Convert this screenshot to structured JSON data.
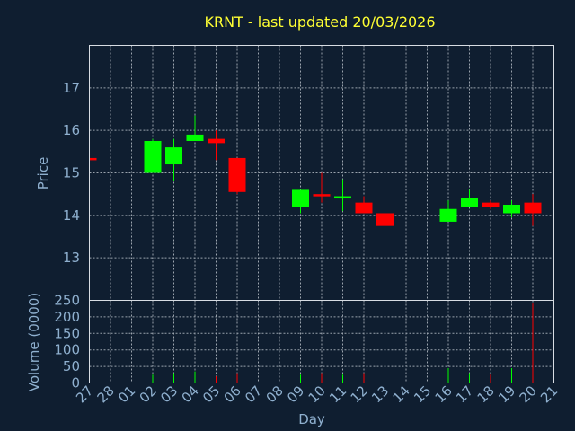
{
  "chart_data": {
    "type": "candlestick",
    "title": "KRNT - last updated 20/03/2026",
    "xlabel": "Day",
    "x_ticks": [
      "27",
      "28",
      "01",
      "02",
      "03",
      "04",
      "05",
      "06",
      "07",
      "08",
      "09",
      "10",
      "11",
      "12",
      "13",
      "14",
      "15",
      "16",
      "17",
      "18",
      "19",
      "20",
      "21"
    ],
    "price_panel": {
      "ylabel": "Price",
      "ylim": [
        12.0,
        18.0
      ],
      "yticks": [
        13,
        14,
        15,
        16,
        17
      ],
      "grid": true
    },
    "volume_panel": {
      "ylabel": "Volume (0000)",
      "ylim": [
        0,
        250
      ],
      "yticks": [
        0,
        50,
        100,
        150,
        200,
        250
      ],
      "grid": true
    },
    "up_color": "#00ff00",
    "down_color": "#ff0000",
    "candles": [
      {
        "day": "27",
        "open": 15.35,
        "high": 15.35,
        "low": 15.3,
        "close": 15.3,
        "volume": 0
      },
      {
        "day": "02",
        "open": 15.0,
        "high": 15.8,
        "low": 15.0,
        "close": 15.75,
        "volume": 25
      },
      {
        "day": "03",
        "open": 15.2,
        "high": 15.8,
        "low": 14.8,
        "close": 15.6,
        "volume": 30
      },
      {
        "day": "04",
        "open": 15.75,
        "high": 16.35,
        "low": 15.75,
        "close": 15.9,
        "volume": 35
      },
      {
        "day": "05",
        "open": 15.8,
        "high": 16.0,
        "low": 15.3,
        "close": 15.7,
        "volume": 20
      },
      {
        "day": "06",
        "open": 15.35,
        "high": 15.35,
        "low": 14.5,
        "close": 14.55,
        "volume": 30
      },
      {
        "day": "09",
        "open": 14.2,
        "high": 14.6,
        "low": 14.05,
        "close": 14.6,
        "volume": 25
      },
      {
        "day": "10",
        "open": 14.5,
        "high": 15.0,
        "low": 14.3,
        "close": 14.45,
        "volume": 30
      },
      {
        "day": "11",
        "open": 14.4,
        "high": 14.85,
        "low": 14.1,
        "close": 14.45,
        "volume": 25
      },
      {
        "day": "12",
        "open": 14.3,
        "high": 14.45,
        "low": 14.05,
        "close": 14.05,
        "volume": 30
      },
      {
        "day": "13",
        "open": 14.05,
        "high": 14.2,
        "low": 13.7,
        "close": 13.75,
        "volume": 35
      },
      {
        "day": "16",
        "open": 13.85,
        "high": 14.35,
        "low": 13.85,
        "close": 14.15,
        "volume": 45
      },
      {
        "day": "17",
        "open": 14.2,
        "high": 14.6,
        "low": 14.2,
        "close": 14.4,
        "volume": 30
      },
      {
        "day": "18",
        "open": 14.3,
        "high": 14.35,
        "low": 14.15,
        "close": 14.2,
        "volume": 25
      },
      {
        "day": "19",
        "open": 14.05,
        "high": 14.35,
        "low": 13.95,
        "close": 14.25,
        "volume": 45
      },
      {
        "day": "20",
        "open": 14.3,
        "high": 14.5,
        "low": 13.75,
        "close": 14.05,
        "volume": 240
      }
    ]
  }
}
